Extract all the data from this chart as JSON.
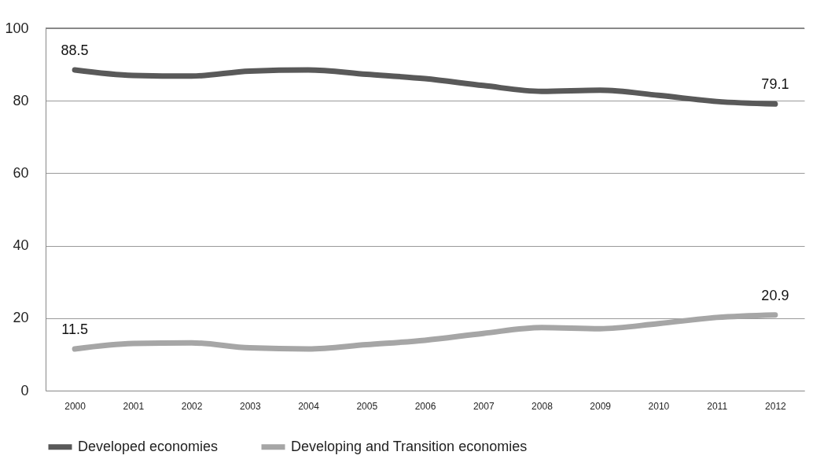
{
  "chart_data": {
    "type": "line",
    "categories": [
      "2000",
      "2001",
      "2002",
      "2003",
      "2004",
      "2005",
      "2006",
      "2007",
      "2008",
      "2009",
      "2010",
      "2011",
      "2012"
    ],
    "series": [
      {
        "name": "Developed economies",
        "color": "#595959",
        "values": [
          88.5,
          87.0,
          86.8,
          88.2,
          88.5,
          87.3,
          86.1,
          84.2,
          82.6,
          82.9,
          81.5,
          79.8,
          79.1
        ],
        "value_labels": [
          "88.5",
          null,
          null,
          null,
          null,
          null,
          null,
          null,
          null,
          null,
          null,
          null,
          "79.1"
        ]
      },
      {
        "name": "Developing and Transition economies",
        "color": "#a6a6a6",
        "values": [
          11.5,
          13.0,
          13.2,
          11.8,
          11.5,
          12.7,
          13.9,
          15.8,
          17.4,
          17.1,
          18.5,
          20.2,
          20.9
        ],
        "value_labels": [
          "11.5",
          null,
          null,
          null,
          null,
          null,
          null,
          null,
          null,
          null,
          null,
          null,
          "20.9"
        ]
      }
    ],
    "ylim": [
      0,
      100
    ],
    "yticks": [
      0,
      20,
      40,
      60,
      80,
      100
    ],
    "grid": "y",
    "legend": "bottom",
    "marker": "none",
    "line_style": "solid"
  }
}
